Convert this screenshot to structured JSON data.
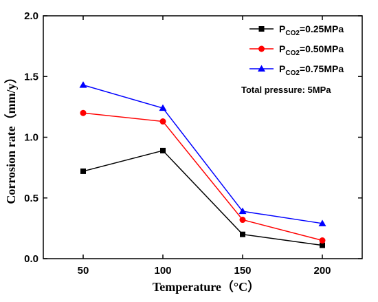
{
  "chart_data": {
    "type": "line",
    "x": [
      50,
      100,
      150,
      200
    ],
    "xlabel": "Temperature（°C）",
    "ylabel": "Corrosion rate（mm/y）",
    "xlim": [
      25,
      225
    ],
    "ylim": [
      0.0,
      2.0
    ],
    "xticks": [
      "50",
      "100",
      "150",
      "200"
    ],
    "yticks": [
      "0.0",
      "0.5",
      "1.0",
      "1.5",
      "2.0"
    ],
    "legend_position": "top-right",
    "grid": false,
    "series": [
      {
        "name": "P_CO2=0.25MPa",
        "label_main": "P",
        "label_sub": "CO2",
        "label_rest": "=0.25MPa",
        "color": "#000000",
        "marker": "square",
        "values": [
          0.72,
          0.89,
          0.2,
          0.11
        ]
      },
      {
        "name": "P_CO2=0.50MPa",
        "label_main": "P",
        "label_sub": "CO2",
        "label_rest": "=0.50MPa",
        "color": "#ff0000",
        "marker": "circle",
        "values": [
          1.2,
          1.13,
          0.32,
          0.15
        ]
      },
      {
        "name": "P_CO2=0.75MPa",
        "label_main": "P",
        "label_sub": "CO2",
        "label_rest": "=0.75MPa",
        "color": "#0000ff",
        "marker": "triangle",
        "values": [
          1.43,
          1.24,
          0.39,
          0.29
        ]
      }
    ],
    "annotation": "Total pressure: 5MPa"
  }
}
